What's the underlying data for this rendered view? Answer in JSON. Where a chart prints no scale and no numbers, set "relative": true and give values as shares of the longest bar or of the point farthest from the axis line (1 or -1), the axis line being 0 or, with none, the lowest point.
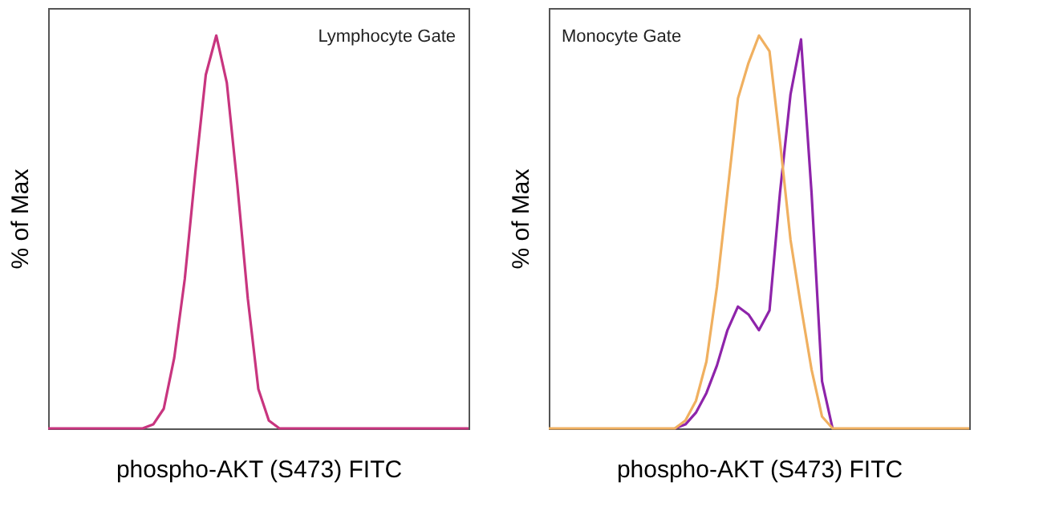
{
  "chart_data": [
    {
      "type": "line",
      "relative": true,
      "xlabel": "phospho-AKT (S473) FITC",
      "ylabel": "% of Max",
      "annotations": [
        "Lymphocyte Gate"
      ],
      "tick_labels": false,
      "grid": false,
      "marker": "none",
      "line_style": "solid",
      "categories": [
        null,
        null,
        null,
        null,
        null,
        null,
        null,
        null,
        null,
        null,
        null,
        null,
        null,
        null,
        null,
        null,
        null,
        null,
        null,
        null,
        null,
        null,
        null,
        null,
        null,
        null,
        null,
        null,
        null,
        null,
        null,
        null,
        null,
        null,
        null,
        null,
        null,
        null,
        null,
        null,
        null
      ],
      "series": [
        {
          "color": "#c8357f",
          "values": [
            0,
            0,
            0,
            0,
            0,
            0,
            0,
            0,
            0,
            0,
            0.01,
            0.05,
            0.18,
            0.38,
            0.65,
            0.9,
            1.0,
            0.88,
            0.62,
            0.33,
            0.1,
            0.02,
            0,
            0,
            0,
            0,
            0,
            0,
            0,
            0,
            0,
            0,
            0,
            0,
            0,
            0,
            0,
            0,
            0,
            0,
            0
          ]
        }
      ]
    },
    {
      "type": "line",
      "relative": true,
      "xlabel": "phospho-AKT (S473) FITC",
      "ylabel": "% of Max",
      "annotations": [
        "Monocyte Gate"
      ],
      "tick_labels": false,
      "grid": false,
      "marker": "none",
      "line_style": "solid",
      "categories": [
        null,
        null,
        null,
        null,
        null,
        null,
        null,
        null,
        null,
        null,
        null,
        null,
        null,
        null,
        null,
        null,
        null,
        null,
        null,
        null,
        null,
        null,
        null,
        null,
        null,
        null,
        null,
        null,
        null,
        null,
        null,
        null,
        null,
        null,
        null,
        null,
        null,
        null,
        null,
        null,
        null
      ],
      "series": [
        {
          "color": "#8e24aa",
          "values": [
            null,
            null,
            null,
            null,
            null,
            null,
            null,
            null,
            null,
            null,
            null,
            null,
            0,
            0.01,
            0.04,
            0.09,
            0.16,
            0.25,
            0.31,
            0.29,
            0.25,
            0.3,
            0.6,
            0.85,
            0.99,
            0.6,
            0.12,
            0,
            null,
            null,
            null,
            null,
            null,
            null,
            null,
            null,
            null,
            null,
            null,
            null,
            null
          ]
        },
        {
          "color": "#f0b060",
          "values": [
            0,
            0,
            0,
            0,
            0,
            0,
            0,
            0,
            0,
            0,
            0,
            0,
            0,
            0.02,
            0.07,
            0.17,
            0.36,
            0.6,
            0.84,
            0.93,
            1.0,
            0.96,
            0.73,
            0.48,
            0.31,
            0.15,
            0.03,
            0,
            0,
            0,
            0,
            0,
            0,
            0,
            0,
            0,
            0,
            0,
            0,
            0,
            0
          ]
        }
      ]
    }
  ]
}
